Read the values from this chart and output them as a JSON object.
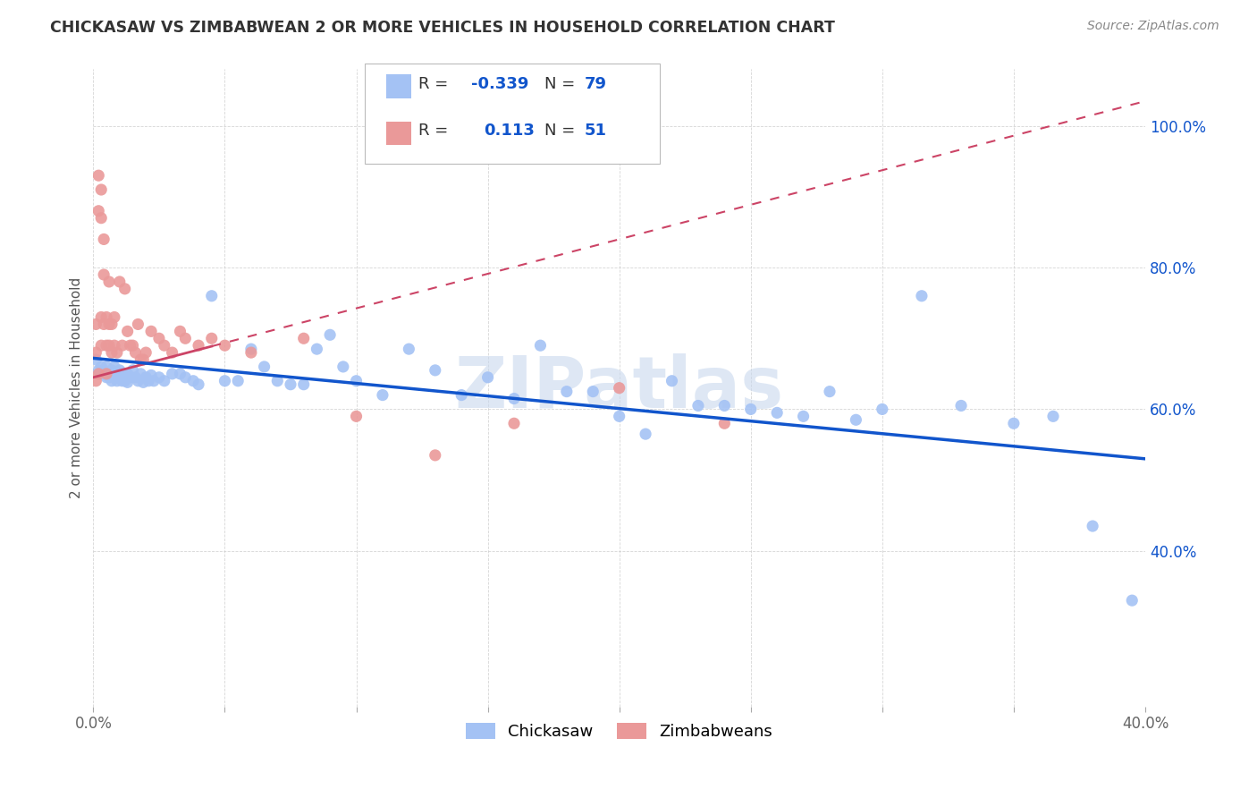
{
  "title": "CHICKASAW VS ZIMBABWEAN 2 OR MORE VEHICLES IN HOUSEHOLD CORRELATION CHART",
  "source": "Source: ZipAtlas.com",
  "ylabel": "2 or more Vehicles in Household",
  "x_min": 0.0,
  "x_max": 0.4,
  "y_min": 0.18,
  "y_max": 1.08,
  "x_ticks": [
    0.0,
    0.05,
    0.1,
    0.15,
    0.2,
    0.25,
    0.3,
    0.35,
    0.4
  ],
  "y_ticks": [
    0.4,
    0.6,
    0.8,
    1.0
  ],
  "y_tick_labels": [
    "40.0%",
    "60.0%",
    "80.0%",
    "100.0%"
  ],
  "chickasaw_color": "#a4c2f4",
  "zimbabwean_color": "#ea9999",
  "trendline_chickasaw_color": "#1155cc",
  "trendline_zimbabwean_color": "#cc4466",
  "watermark_color": "#c8d8ee",
  "chickasaw_x": [
    0.001,
    0.002,
    0.003,
    0.004,
    0.004,
    0.005,
    0.005,
    0.006,
    0.006,
    0.007,
    0.007,
    0.007,
    0.008,
    0.008,
    0.009,
    0.009,
    0.01,
    0.01,
    0.011,
    0.011,
    0.012,
    0.012,
    0.013,
    0.013,
    0.014,
    0.015,
    0.016,
    0.017,
    0.018,
    0.019,
    0.02,
    0.021,
    0.022,
    0.023,
    0.025,
    0.027,
    0.03,
    0.033,
    0.035,
    0.038,
    0.04,
    0.045,
    0.05,
    0.055,
    0.06,
    0.065,
    0.07,
    0.075,
    0.08,
    0.085,
    0.09,
    0.095,
    0.1,
    0.11,
    0.12,
    0.13,
    0.14,
    0.15,
    0.16,
    0.17,
    0.18,
    0.19,
    0.2,
    0.21,
    0.22,
    0.23,
    0.24,
    0.25,
    0.26,
    0.27,
    0.28,
    0.29,
    0.3,
    0.315,
    0.33,
    0.35,
    0.365,
    0.38,
    0.395
  ],
  "chickasaw_y": [
    0.67,
    0.655,
    0.66,
    0.655,
    0.65,
    0.66,
    0.645,
    0.65,
    0.645,
    0.655,
    0.648,
    0.64,
    0.66,
    0.65,
    0.645,
    0.64,
    0.655,
    0.645,
    0.65,
    0.64,
    0.645,
    0.64,
    0.65,
    0.638,
    0.645,
    0.655,
    0.645,
    0.64,
    0.65,
    0.638,
    0.645,
    0.64,
    0.648,
    0.64,
    0.645,
    0.64,
    0.65,
    0.65,
    0.645,
    0.64,
    0.635,
    0.76,
    0.64,
    0.64,
    0.685,
    0.66,
    0.64,
    0.635,
    0.635,
    0.685,
    0.705,
    0.66,
    0.64,
    0.62,
    0.685,
    0.655,
    0.62,
    0.645,
    0.615,
    0.69,
    0.625,
    0.625,
    0.59,
    0.565,
    0.64,
    0.605,
    0.605,
    0.6,
    0.595,
    0.59,
    0.625,
    0.585,
    0.6,
    0.76,
    0.605,
    0.58,
    0.59,
    0.435,
    0.33
  ],
  "zimbabwean_x": [
    0.001,
    0.001,
    0.001,
    0.002,
    0.002,
    0.002,
    0.003,
    0.003,
    0.003,
    0.003,
    0.004,
    0.004,
    0.004,
    0.005,
    0.005,
    0.005,
    0.006,
    0.006,
    0.006,
    0.007,
    0.007,
    0.008,
    0.008,
    0.009,
    0.01,
    0.011,
    0.012,
    0.013,
    0.014,
    0.015,
    0.016,
    0.017,
    0.018,
    0.019,
    0.02,
    0.022,
    0.025,
    0.027,
    0.03,
    0.033,
    0.035,
    0.04,
    0.045,
    0.05,
    0.06,
    0.08,
    0.1,
    0.13,
    0.16,
    0.2,
    0.24
  ],
  "zimbabwean_y": [
    0.72,
    0.68,
    0.64,
    0.88,
    0.93,
    0.65,
    0.87,
    0.91,
    0.73,
    0.69,
    0.84,
    0.79,
    0.72,
    0.73,
    0.69,
    0.65,
    0.78,
    0.72,
    0.69,
    0.72,
    0.68,
    0.73,
    0.69,
    0.68,
    0.78,
    0.69,
    0.77,
    0.71,
    0.69,
    0.69,
    0.68,
    0.72,
    0.67,
    0.67,
    0.68,
    0.71,
    0.7,
    0.69,
    0.68,
    0.71,
    0.7,
    0.69,
    0.7,
    0.69,
    0.68,
    0.7,
    0.59,
    0.535,
    0.58,
    0.63,
    0.58
  ],
  "trendline_chickasaw_x0": 0.0,
  "trendline_chickasaw_x1": 0.4,
  "trendline_chickasaw_y0": 0.672,
  "trendline_chickasaw_y1": 0.53,
  "trendline_zimbabwean_x0": 0.0,
  "trendline_zimbabwean_x1": 0.4,
  "trendline_zimbabwean_y0": 0.645,
  "trendline_zimbabwean_y1": 1.035,
  "trendline_zimbabwean_solid_x1": 0.045
}
